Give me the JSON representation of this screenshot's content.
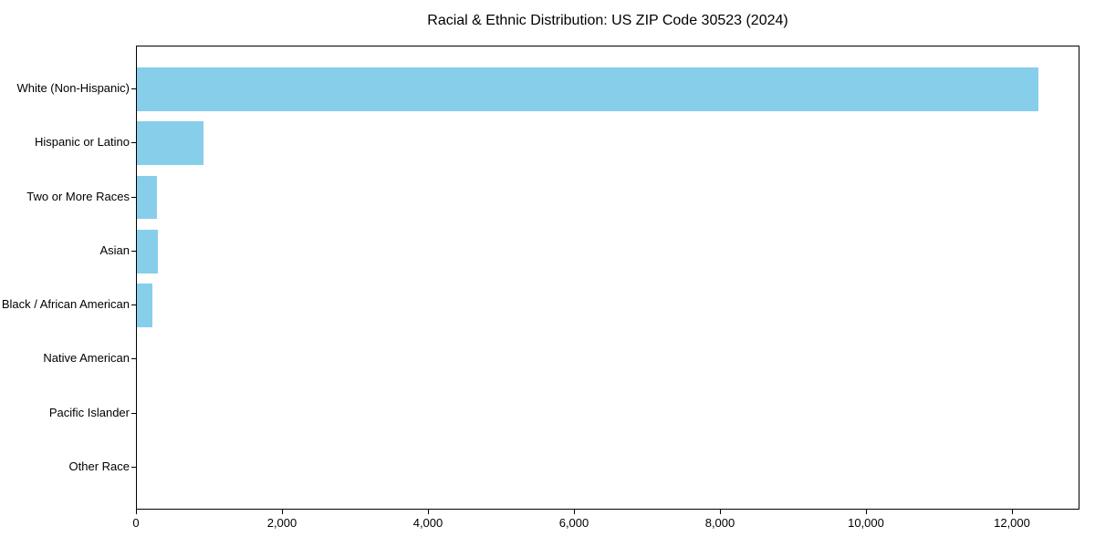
{
  "chart_data": {
    "type": "bar",
    "orientation": "horizontal",
    "title": "Racial & Ethnic Distribution: US ZIP Code 30523 (2024)",
    "categories": [
      "White (Non-Hispanic)",
      "Hispanic or Latino",
      "Two or More Races",
      "Asian",
      "Black / African American",
      "Native American",
      "Pacific Islander",
      "Other Race"
    ],
    "values": [
      12350,
      910,
      275,
      285,
      210,
      0,
      0,
      0
    ],
    "bar_color": "#87CEEB",
    "text_color": "#000000",
    "xlabel": "",
    "ylabel": "",
    "xlim": [
      0,
      12925
    ],
    "x_ticks": [
      0,
      2000,
      4000,
      6000,
      8000,
      10000,
      12000
    ],
    "x_tick_labels": [
      "0",
      "2,000",
      "4,000",
      "6,000",
      "8,000",
      "10,000",
      "12,000"
    ],
    "grid": false,
    "legend": null,
    "bar_height_fraction": 0.8
  }
}
